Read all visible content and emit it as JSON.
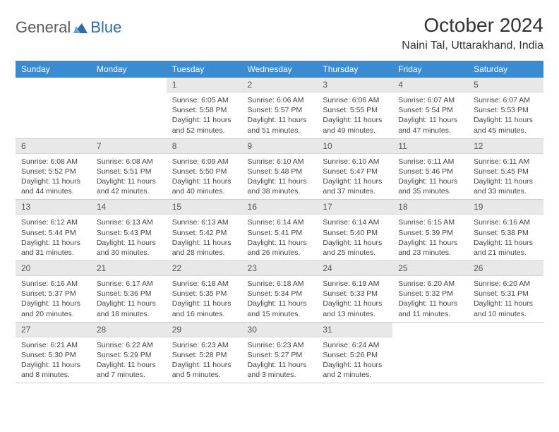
{
  "logo": {
    "general": "General",
    "blue": "Blue"
  },
  "title": "October 2024",
  "location": "Naini Tal, Uttarakhand, India",
  "colors": {
    "header_bg": "#3a8bd0",
    "header_text": "#ffffff",
    "daybar_bg": "#e8e8e8",
    "border": "#cccccc",
    "body_text": "#444444"
  },
  "weekdays": [
    "Sunday",
    "Monday",
    "Tuesday",
    "Wednesday",
    "Thursday",
    "Friday",
    "Saturday"
  ],
  "weeks": [
    [
      null,
      null,
      {
        "n": "1",
        "sr": "6:05 AM",
        "ss": "5:58 PM",
        "dl": "11 hours and 52 minutes."
      },
      {
        "n": "2",
        "sr": "6:06 AM",
        "ss": "5:57 PM",
        "dl": "11 hours and 51 minutes."
      },
      {
        "n": "3",
        "sr": "6:06 AM",
        "ss": "5:55 PM",
        "dl": "11 hours and 49 minutes."
      },
      {
        "n": "4",
        "sr": "6:07 AM",
        "ss": "5:54 PM",
        "dl": "11 hours and 47 minutes."
      },
      {
        "n": "5",
        "sr": "6:07 AM",
        "ss": "5:53 PM",
        "dl": "11 hours and 45 minutes."
      }
    ],
    [
      {
        "n": "6",
        "sr": "6:08 AM",
        "ss": "5:52 PM",
        "dl": "11 hours and 44 minutes."
      },
      {
        "n": "7",
        "sr": "6:08 AM",
        "ss": "5:51 PM",
        "dl": "11 hours and 42 minutes."
      },
      {
        "n": "8",
        "sr": "6:09 AM",
        "ss": "5:50 PM",
        "dl": "11 hours and 40 minutes."
      },
      {
        "n": "9",
        "sr": "6:10 AM",
        "ss": "5:48 PM",
        "dl": "11 hours and 38 minutes."
      },
      {
        "n": "10",
        "sr": "6:10 AM",
        "ss": "5:47 PM",
        "dl": "11 hours and 37 minutes."
      },
      {
        "n": "11",
        "sr": "6:11 AM",
        "ss": "5:46 PM",
        "dl": "11 hours and 35 minutes."
      },
      {
        "n": "12",
        "sr": "6:11 AM",
        "ss": "5:45 PM",
        "dl": "11 hours and 33 minutes."
      }
    ],
    [
      {
        "n": "13",
        "sr": "6:12 AM",
        "ss": "5:44 PM",
        "dl": "11 hours and 31 minutes."
      },
      {
        "n": "14",
        "sr": "6:13 AM",
        "ss": "5:43 PM",
        "dl": "11 hours and 30 minutes."
      },
      {
        "n": "15",
        "sr": "6:13 AM",
        "ss": "5:42 PM",
        "dl": "11 hours and 28 minutes."
      },
      {
        "n": "16",
        "sr": "6:14 AM",
        "ss": "5:41 PM",
        "dl": "11 hours and 26 minutes."
      },
      {
        "n": "17",
        "sr": "6:14 AM",
        "ss": "5:40 PM",
        "dl": "11 hours and 25 minutes."
      },
      {
        "n": "18",
        "sr": "6:15 AM",
        "ss": "5:39 PM",
        "dl": "11 hours and 23 minutes."
      },
      {
        "n": "19",
        "sr": "6:16 AM",
        "ss": "5:38 PM",
        "dl": "11 hours and 21 minutes."
      }
    ],
    [
      {
        "n": "20",
        "sr": "6:16 AM",
        "ss": "5:37 PM",
        "dl": "11 hours and 20 minutes."
      },
      {
        "n": "21",
        "sr": "6:17 AM",
        "ss": "5:36 PM",
        "dl": "11 hours and 18 minutes."
      },
      {
        "n": "22",
        "sr": "6:18 AM",
        "ss": "5:35 PM",
        "dl": "11 hours and 16 minutes."
      },
      {
        "n": "23",
        "sr": "6:18 AM",
        "ss": "5:34 PM",
        "dl": "11 hours and 15 minutes."
      },
      {
        "n": "24",
        "sr": "6:19 AM",
        "ss": "5:33 PM",
        "dl": "11 hours and 13 minutes."
      },
      {
        "n": "25",
        "sr": "6:20 AM",
        "ss": "5:32 PM",
        "dl": "11 hours and 11 minutes."
      },
      {
        "n": "26",
        "sr": "6:20 AM",
        "ss": "5:31 PM",
        "dl": "11 hours and 10 minutes."
      }
    ],
    [
      {
        "n": "27",
        "sr": "6:21 AM",
        "ss": "5:30 PM",
        "dl": "11 hours and 8 minutes."
      },
      {
        "n": "28",
        "sr": "6:22 AM",
        "ss": "5:29 PM",
        "dl": "11 hours and 7 minutes."
      },
      {
        "n": "29",
        "sr": "6:23 AM",
        "ss": "5:28 PM",
        "dl": "11 hours and 5 minutes."
      },
      {
        "n": "30",
        "sr": "6:23 AM",
        "ss": "5:27 PM",
        "dl": "11 hours and 3 minutes."
      },
      {
        "n": "31",
        "sr": "6:24 AM",
        "ss": "5:26 PM",
        "dl": "11 hours and 2 minutes."
      },
      null,
      null
    ]
  ],
  "labels": {
    "sunrise": "Sunrise: ",
    "sunset": "Sunset: ",
    "daylight": "Daylight: "
  }
}
